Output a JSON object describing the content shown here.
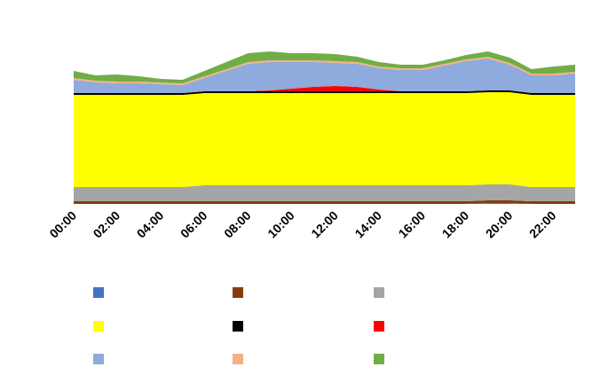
{
  "chart_data": {
    "type": "stacked_area",
    "categories": [
      "00:00",
      null,
      "02:00",
      null,
      "04:00",
      null,
      "06:00",
      null,
      "08:00",
      null,
      "10:00",
      null,
      "12:00",
      null,
      "14:00",
      null,
      "16:00",
      null,
      "18:00",
      null,
      "20:00",
      null,
      "22:00",
      null
    ],
    "ylim": [
      0,
      180
    ],
    "series": [
      {
        "color": "#4472c4",
        "values": [
          0,
          0,
          0,
          0,
          0,
          0,
          0,
          0,
          0,
          0,
          0,
          0,
          0,
          0,
          0,
          0,
          0,
          0,
          0,
          1,
          1,
          0,
          0,
          0
        ]
      },
      {
        "color": "#843c0c",
        "values": [
          3,
          3,
          3,
          3,
          3,
          3,
          3,
          3,
          3,
          3,
          3,
          3,
          3,
          3,
          3,
          3,
          3,
          3,
          3,
          3,
          3,
          3,
          3,
          3
        ]
      },
      {
        "color": "#a5a5a5",
        "values": [
          16,
          16,
          16,
          16,
          16,
          16,
          18,
          18,
          18,
          18,
          18,
          18,
          18,
          18,
          18,
          18,
          18,
          18,
          18,
          18,
          18,
          16,
          16,
          16
        ]
      },
      {
        "color": "#ffff00",
        "values": [
          104,
          104,
          104,
          104,
          104,
          104,
          104,
          104,
          104,
          104,
          104,
          104,
          104,
          104,
          104,
          104,
          104,
          104,
          104,
          104,
          104,
          104,
          104,
          104
        ]
      },
      {
        "color": "#000000",
        "values": [
          2,
          2,
          2,
          2,
          2,
          2,
          2,
          2,
          2,
          2,
          2,
          2,
          2,
          2,
          2,
          2,
          2,
          2,
          2,
          2,
          2,
          2,
          2,
          2
        ]
      },
      {
        "color": "#ff0000",
        "values": [
          0,
          0,
          0,
          0,
          0,
          0,
          0,
          0,
          0,
          1,
          3,
          5,
          6,
          5,
          2,
          0,
          0,
          0,
          0,
          0,
          0,
          0,
          0,
          0
        ]
      },
      {
        "color": "#8faadc",
        "values": [
          15,
          12,
          11,
          11,
          10,
          9,
          15,
          23,
          31,
          32,
          30,
          28,
          26,
          26,
          24,
          24,
          24,
          29,
          34,
          36,
          29,
          20,
          20,
          22
        ]
      },
      {
        "color": "#f4b183",
        "values": [
          2,
          2,
          2,
          2,
          2,
          2,
          2,
          2,
          2,
          2,
          2,
          2,
          2,
          2,
          2,
          2,
          2,
          2,
          2,
          2,
          2,
          2,
          2,
          2
        ]
      },
      {
        "color": "#70ad47",
        "values": [
          8,
          6,
          8,
          6,
          4,
          4,
          6,
          8,
          10,
          10,
          8,
          8,
          8,
          6,
          5,
          4,
          4,
          4,
          5,
          6,
          6,
          5,
          8,
          8
        ]
      }
    ]
  }
}
